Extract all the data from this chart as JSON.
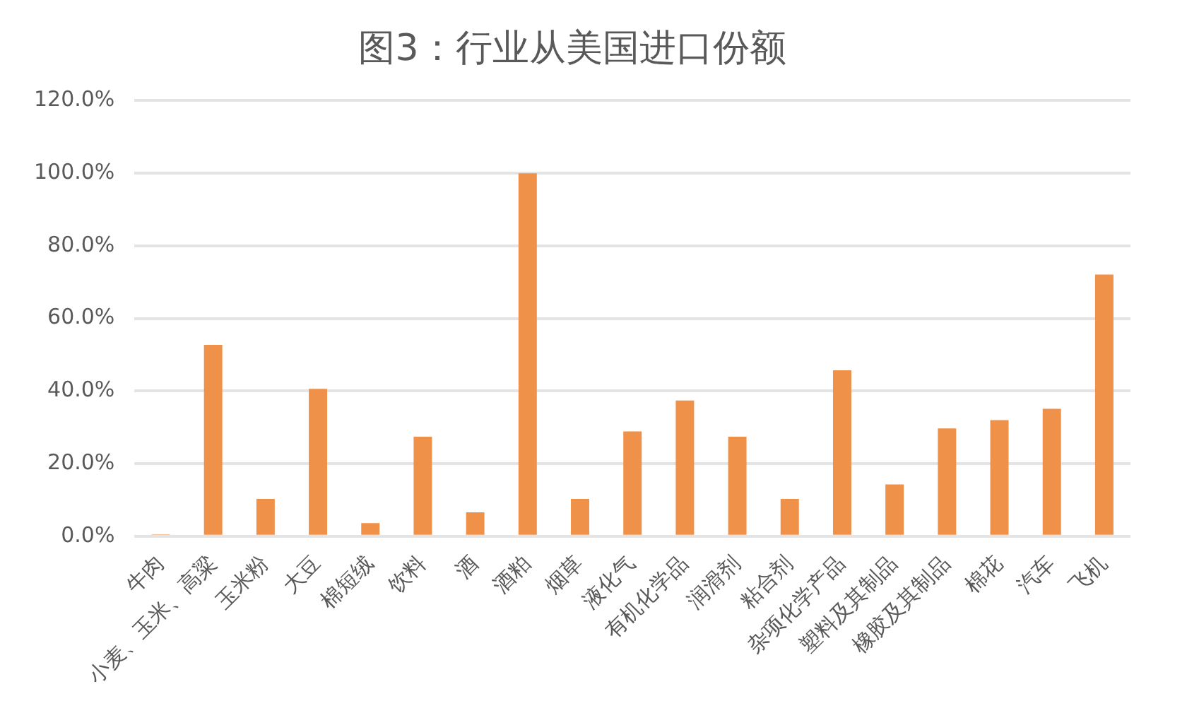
{
  "chart_data": {
    "type": "bar",
    "title": "图3：行业从美国进口份额",
    "categories": [
      "牛肉",
      "小麦、玉米、高粱",
      "玉米粉",
      "大豆",
      "棉短绒",
      "饮料",
      "酒",
      "酒粕",
      "烟草",
      "液化气",
      "有机化学品",
      "润滑剂",
      "粘合剂",
      "杂项化学产品",
      "塑料及其制品",
      "橡胶及其制品",
      "棉花",
      "汽车",
      "飞机"
    ],
    "values": [
      0.5,
      52.7,
      10.3,
      40.6,
      3.6,
      27.4,
      6.6,
      100,
      10.3,
      28.9,
      37.4,
      27.4,
      10.3,
      45.7,
      14.3,
      29.7,
      32.0,
      35.1,
      72.1
    ],
    "color": "#f0914a",
    "ylim": [
      0,
      120
    ],
    "yticks": [
      {
        "value": 0,
        "label": "0.0%"
      },
      {
        "value": 20,
        "label": "20.0%"
      },
      {
        "value": 40,
        "label": "40.0%"
      },
      {
        "value": 60,
        "label": "60.0%"
      },
      {
        "value": 80,
        "label": "80.0%"
      },
      {
        "value": 100,
        "label": "100.0%"
      },
      {
        "value": 120,
        "label": "120.0%"
      }
    ],
    "grid": "y"
  }
}
